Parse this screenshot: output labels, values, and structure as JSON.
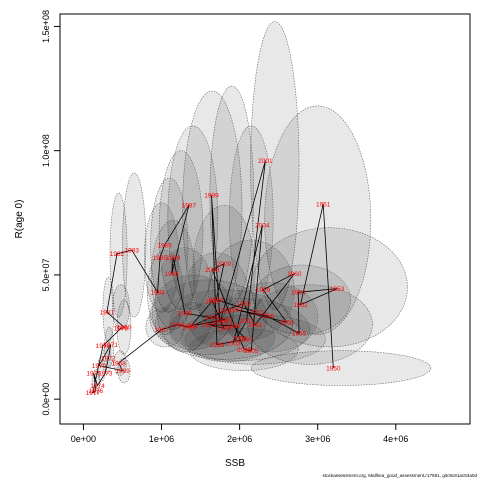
{
  "chart_data": {
    "type": "scatter",
    "xlabel": "SSB",
    "ylabel": "R(age 0)",
    "xlim": [
      -300000,
      4950000
    ],
    "ylim": [
      -10000000,
      155000000
    ],
    "x_ticks": [
      0,
      1000000,
      2000000,
      3000000,
      4000000
    ],
    "x_tick_labels": [
      "0e+00",
      "1e+06",
      "2e+06",
      "3e+06",
      "4e+06"
    ],
    "y_ticks": [
      0,
      50000000,
      100000000,
      150000000
    ],
    "y_tick_labels": [
      "0.0e+00",
      "5.0e+07",
      "1.0e+08",
      "1.5e+08"
    ],
    "grid": false,
    "legend": "none",
    "colors": {
      "line": "#000000",
      "label": "#ff0000",
      "ellipse_fill": "#000000",
      "ellipse_stroke": "#666666"
    },
    "points": [
      {
        "year": "1950",
        "ssb": 3200000,
        "r": 12500000
      },
      {
        "year": "1951",
        "ssb": 3070000,
        "r": 78500000
      },
      {
        "year": "1952",
        "ssb": 2780000,
        "r": 38000000
      },
      {
        "year": "1953",
        "ssb": 3250000,
        "r": 44500000
      },
      {
        "year": "1954",
        "ssb": 2750000,
        "r": 43000000
      },
      {
        "year": "1955",
        "ssb": 2760000,
        "r": 26500000
      },
      {
        "year": "1956",
        "ssb": 2350000,
        "r": 33500000
      },
      {
        "year": "1957",
        "ssb": 1950000,
        "r": 36000000
      },
      {
        "year": "1958",
        "ssb": 2600000,
        "r": 31000000
      },
      {
        "year": "1959",
        "ssb": 2300000,
        "r": 44000000
      },
      {
        "year": "1960",
        "ssb": 2700000,
        "r": 50500000
      },
      {
        "year": "1961",
        "ssb": 2200000,
        "r": 30000000
      },
      {
        "year": "1962",
        "ssb": 2050000,
        "r": 38500000
      },
      {
        "year": "1963",
        "ssb": 1800000,
        "r": 35500000
      },
      {
        "year": "1964",
        "ssb": 1650000,
        "r": 33000000
      },
      {
        "year": "1965",
        "ssb": 1350000,
        "r": 29000000
      },
      {
        "year": "1966",
        "ssb": 1200000,
        "r": 30000000
      },
      {
        "year": "1967",
        "ssb": 1000000,
        "r": 28000000
      },
      {
        "year": "1968",
        "ssb": 450000,
        "r": 14500000
      },
      {
        "year": "1969",
        "ssb": 500000,
        "r": 11500000
      },
      {
        "year": "1970",
        "ssb": 200000,
        "r": 13500000
      },
      {
        "year": "1971",
        "ssb": 350000,
        "r": 22000000
      },
      {
        "year": "1972",
        "ssb": 320000,
        "r": 16500000
      },
      {
        "year": "1973",
        "ssb": 280000,
        "r": 10500000
      },
      {
        "year": "1974",
        "ssb": 180000,
        "r": 5500000
      },
      {
        "year": "1975",
        "ssb": 130000,
        "r": 10500000
      },
      {
        "year": "1976",
        "ssb": 160000,
        "r": 3500000
      },
      {
        "year": "1977",
        "ssb": 120000,
        "r": 2500000
      },
      {
        "year": "1978",
        "ssb": 250000,
        "r": 21500000
      },
      {
        "year": "1979",
        "ssb": 480000,
        "r": 28500000
      },
      {
        "year": "1980",
        "ssb": 520000,
        "r": 29000000
      },
      {
        "year": "1981",
        "ssb": 300000,
        "r": 35000000
      },
      {
        "year": "1982",
        "ssb": 430000,
        "r": 58500000
      },
      {
        "year": "1983",
        "ssb": 620000,
        "r": 60000000
      },
      {
        "year": "1984",
        "ssb": 950000,
        "r": 43000000
      },
      {
        "year": "1985",
        "ssb": 980000,
        "r": 57000000
      },
      {
        "year": "1986",
        "ssb": 1040000,
        "r": 62000000
      },
      {
        "year": "1987",
        "ssb": 1350000,
        "r": 78000000
      },
      {
        "year": "1988",
        "ssb": 1130000,
        "r": 50500000
      },
      {
        "year": "1989",
        "ssb": 1150000,
        "r": 57000000
      },
      {
        "year": "1990",
        "ssb": 1300000,
        "r": 34500000
      },
      {
        "year": "1991",
        "ssb": 1820000,
        "r": 32000000
      },
      {
        "year": "1992",
        "ssb": 1380000,
        "r": 29500000
      },
      {
        "year": "1993",
        "ssb": 1650000,
        "r": 39500000
      },
      {
        "year": "1994",
        "ssb": 1800000,
        "r": 28500000
      },
      {
        "year": "1995",
        "ssb": 1600000,
        "r": 30000000
      },
      {
        "year": "1996",
        "ssb": 1920000,
        "r": 29500000
      },
      {
        "year": "1997",
        "ssb": 2080000,
        "r": 24000000
      },
      {
        "year": "1998",
        "ssb": 1710000,
        "r": 22000000
      },
      {
        "year": "1999",
        "ssb": 1640000,
        "r": 82000000
      },
      {
        "year": "2000",
        "ssb": 1750000,
        "r": 31000000
      },
      {
        "year": "2001",
        "ssb": 2330000,
        "r": 96000000
      },
      {
        "year": "2002",
        "ssb": 2090000,
        "r": 31500000
      },
      {
        "year": "2003",
        "ssb": 1920000,
        "r": 22500000
      },
      {
        "year": "2004",
        "ssb": 2290000,
        "r": 70000000
      },
      {
        "year": "2005",
        "ssb": 2150000,
        "r": 19500000
      },
      {
        "year": "2006",
        "ssb": 2060000,
        "r": 20000000
      },
      {
        "year": "2007",
        "ssb": 2000000,
        "r": 24500000
      },
      {
        "year": "2008",
        "ssb": 1650000,
        "r": 52000000
      },
      {
        "year": "2009",
        "ssb": 1800000,
        "r": 54500000
      },
      {
        "year": "2010",
        "ssb": 1700000,
        "r": 40000000
      },
      {
        "year": "2011",
        "ssb": 2220000,
        "r": 35000000
      }
    ],
    "ellipses": [
      {
        "cx": 2450000,
        "cy": 94000000,
        "rx": 310000,
        "ry": 58000000
      },
      {
        "cx": 3000000,
        "cy": 72000000,
        "rx": 680000,
        "ry": 46000000
      },
      {
        "cx": 3300000,
        "cy": 12500000,
        "rx": 1150000,
        "ry": 7000000
      },
      {
        "cx": 3150000,
        "cy": 45000000,
        "rx": 1000000,
        "ry": 24000000
      },
      {
        "cx": 2800000,
        "cy": 40000000,
        "rx": 620000,
        "ry": 14000000
      },
      {
        "cx": 2900000,
        "cy": 30000000,
        "rx": 800000,
        "ry": 16000000
      },
      {
        "cx": 1900000,
        "cy": 82000000,
        "rx": 280000,
        "ry": 44000000
      },
      {
        "cx": 1650000,
        "cy": 77000000,
        "rx": 380000,
        "ry": 47000000
      },
      {
        "cx": 2150000,
        "cy": 73000000,
        "rx": 280000,
        "ry": 37000000
      },
      {
        "cx": 1400000,
        "cy": 73000000,
        "rx": 320000,
        "ry": 37000000
      },
      {
        "cx": 1250000,
        "cy": 68000000,
        "rx": 280000,
        "ry": 32000000
      },
      {
        "cx": 1100000,
        "cy": 62000000,
        "rx": 240000,
        "ry": 27000000
      },
      {
        "cx": 650000,
        "cy": 62000000,
        "rx": 150000,
        "ry": 29000000
      },
      {
        "cx": 450000,
        "cy": 58000000,
        "rx": 110000,
        "ry": 25000000
      },
      {
        "cx": 1000000,
        "cy": 57000000,
        "rx": 220000,
        "ry": 22000000
      },
      {
        "cx": 1150000,
        "cy": 50000000,
        "rx": 280000,
        "ry": 22000000
      },
      {
        "cx": 1050000,
        "cy": 43000000,
        "rx": 230000,
        "ry": 17000000
      },
      {
        "cx": 1300000,
        "cy": 40000000,
        "rx": 380000,
        "ry": 21000000
      },
      {
        "cx": 1400000,
        "cy": 35000000,
        "rx": 520000,
        "ry": 15000000
      },
      {
        "cx": 1600000,
        "cy": 33000000,
        "rx": 750000,
        "ry": 15000000
      },
      {
        "cx": 1800000,
        "cy": 30000000,
        "rx": 880000,
        "ry": 14000000
      },
      {
        "cx": 2000000,
        "cy": 28000000,
        "rx": 900000,
        "ry": 12500000
      },
      {
        "cx": 2200000,
        "cy": 24000000,
        "rx": 900000,
        "ry": 10000000
      },
      {
        "cx": 2050000,
        "cy": 20000000,
        "rx": 700000,
        "ry": 8500000
      },
      {
        "cx": 2150000,
        "cy": 44000000,
        "rx": 550000,
        "ry": 20000000
      },
      {
        "cx": 1800000,
        "cy": 52000000,
        "rx": 400000,
        "ry": 26000000
      },
      {
        "cx": 1700000,
        "cy": 40000000,
        "rx": 430000,
        "ry": 19000000
      },
      {
        "cx": 2400000,
        "cy": 33000000,
        "rx": 600000,
        "ry": 14000000
      },
      {
        "cx": 1850000,
        "cy": 25000000,
        "rx": 600000,
        "ry": 10000000
      },
      {
        "cx": 1400000,
        "cy": 30000000,
        "rx": 300000,
        "ry": 9000000
      },
      {
        "cx": 1050000,
        "cy": 29000000,
        "rx": 250000,
        "ry": 8000000
      },
      {
        "cx": 520000,
        "cy": 29000000,
        "rx": 90000,
        "ry": 11000000
      },
      {
        "cx": 480000,
        "cy": 37000000,
        "rx": 110000,
        "ry": 9000000
      },
      {
        "cx": 320000,
        "cy": 36000000,
        "rx": 70000,
        "ry": 13000000
      },
      {
        "cx": 330000,
        "cy": 21000000,
        "rx": 60000,
        "ry": 8000000
      },
      {
        "cx": 300000,
        "cy": 16000000,
        "rx": 55000,
        "ry": 6000000
      },
      {
        "cx": 230000,
        "cy": 12000000,
        "rx": 50000,
        "ry": 5000000
      },
      {
        "cx": 160000,
        "cy": 7000000,
        "rx": 50000,
        "ry": 5000000
      },
      {
        "cx": 520000,
        "cy": 11500000,
        "rx": 80000,
        "ry": 5000000
      },
      {
        "cx": 470000,
        "cy": 14500000,
        "rx": 80000,
        "ry": 5000000
      }
    ]
  },
  "footer": {
    "credit": "stockassessment.org, Mallhea_good_assessment,r17591, gitc9c81ac53a0d"
  }
}
